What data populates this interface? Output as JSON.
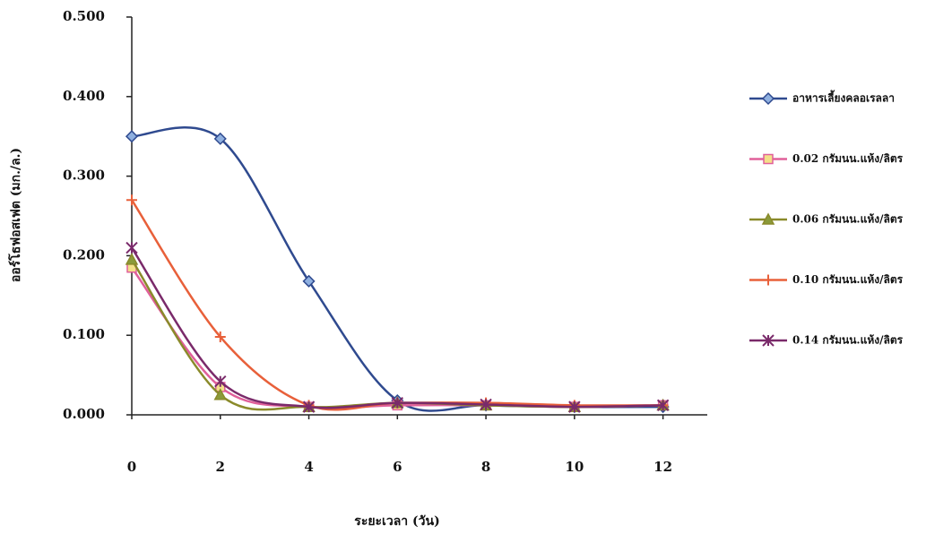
{
  "chart_data": {
    "type": "line",
    "x_label": "ระยะเวลา (วัน)",
    "y_label": "ออร์โธฟอสเฟต (มก./ล.)",
    "x": [
      0,
      2,
      4,
      6,
      8,
      10,
      12
    ],
    "xlim": [
      0,
      13
    ],
    "xticks": [
      0,
      2,
      4,
      6,
      8,
      10,
      12
    ],
    "ylim": [
      0,
      0.5
    ],
    "yticks": [
      {
        "value": 0,
        "label": "0.000"
      },
      {
        "value": 0.1,
        "label": "0.100"
      },
      {
        "value": 0.2,
        "label": "0.200"
      },
      {
        "value": 0.3,
        "label": "0.300"
      },
      {
        "value": 0.4,
        "label": "0.400"
      },
      {
        "value": 0.5,
        "label": "0.500"
      }
    ],
    "smooth": true,
    "legend": "right",
    "series": [
      {
        "name": "อาหารเลี้ยงคลอเรลลา",
        "color": "#2f4a8f",
        "marker_fill": "#8fb0e0",
        "marker": "diamond",
        "values": [
          0.35,
          0.347,
          0.168,
          0.018,
          0.012,
          0.01,
          0.01
        ]
      },
      {
        "name": "0.02 กรัมนน.แห้ง/ลิตร",
        "color": "#e0609a",
        "marker_fill": "#f3e08a",
        "marker": "square",
        "values": [
          0.185,
          0.035,
          0.01,
          0.012,
          0.012,
          0.01,
          0.012
        ]
      },
      {
        "name": "0.06 กรัมนน.แห้ง/ลิตร",
        "color": "#8a8a2a",
        "marker_fill": "#8a9a3a",
        "marker": "triangle",
        "values": [
          0.195,
          0.025,
          0.01,
          0.015,
          0.012,
          0.01,
          0.012
        ]
      },
      {
        "name": "0.10 กรัมนน.แห้ง/ลิตร",
        "color": "#e8603a",
        "marker_fill": "#e8603a",
        "marker": "plus",
        "values": [
          0.27,
          0.098,
          0.012,
          0.015,
          0.015,
          0.012,
          0.012
        ]
      },
      {
        "name": "0.14 กรัมนน.แห้ง/ลิตร",
        "color": "#7a2a6a",
        "marker_fill": "#7a2a6a",
        "marker": "asterisk",
        "values": [
          0.21,
          0.042,
          0.01,
          0.015,
          0.013,
          0.01,
          0.012
        ]
      }
    ]
  }
}
